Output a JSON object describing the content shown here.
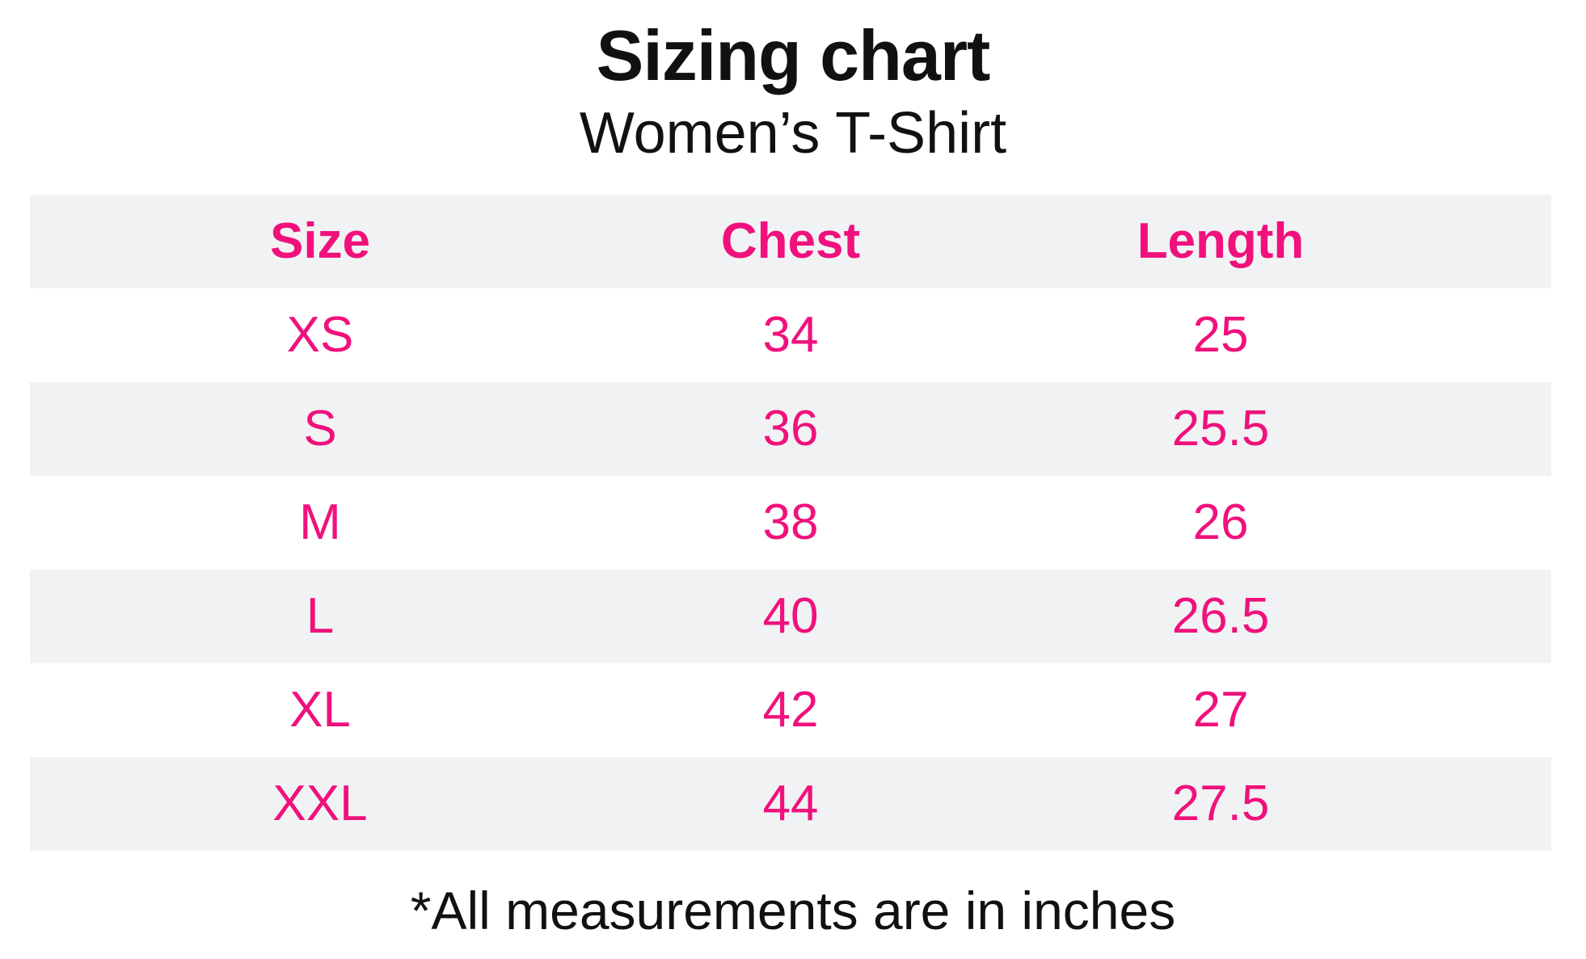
{
  "header": {
    "title": "Sizing chart",
    "subtitle": "Women’s T-Shirt"
  },
  "footnote": {
    "text": "*All measurements are in inches"
  },
  "colors": {
    "accent_pink": "#f0117c",
    "stripe_gray": "#f1f2f4",
    "text_black": "#111111",
    "background": "#ffffff"
  },
  "chart_data": {
    "type": "table",
    "title": "Sizing chart",
    "subtitle": "Women’s T-Shirt",
    "columns": [
      "Size",
      "Chest",
      "Length"
    ],
    "rows": [
      [
        "XS",
        "34",
        "25"
      ],
      [
        "S",
        "36",
        "25.5"
      ],
      [
        "M",
        "38",
        "26"
      ],
      [
        "L",
        "40",
        "26.5"
      ],
      [
        "XL",
        "42",
        "27"
      ],
      [
        "XXL",
        "44",
        "27.5"
      ]
    ],
    "footnote": "*All measurements are in inches",
    "units": "inches",
    "layout": {
      "grid": false,
      "stripes": "header and alternate data rows shaded light gray",
      "text_alignment": "center"
    }
  }
}
